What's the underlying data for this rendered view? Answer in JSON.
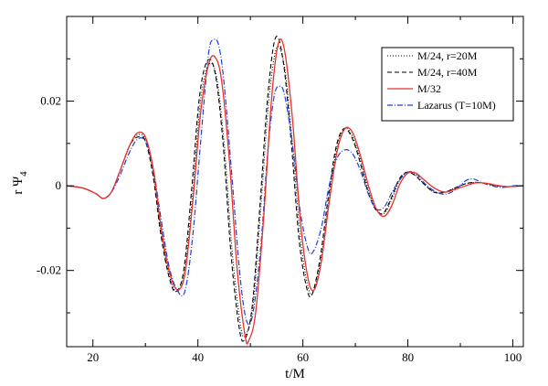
{
  "chart_data": {
    "type": "line",
    "title": "",
    "xlabel": "t/M",
    "ylabel_main": "r Ψ",
    "ylabel_sub": "4",
    "xlim": [
      15,
      102
    ],
    "ylim": [
      -0.038,
      0.04
    ],
    "x_ticks": [
      20,
      40,
      60,
      80,
      100
    ],
    "x_tick_labels": [
      "20",
      "40",
      "60",
      "80",
      "100"
    ],
    "y_ticks": [
      -0.02,
      0,
      0.02
    ],
    "y_tick_labels": [
      "-0.02",
      "0",
      "0.02"
    ],
    "grid": false,
    "legend_position": "top-right",
    "series": [
      {
        "name": "M/24, r=20M",
        "color": "#000000",
        "dash": "dotted",
        "points": [
          [
            15,
            0.0
          ],
          [
            18,
            -0.0005
          ],
          [
            20.5,
            -0.0018
          ],
          [
            22,
            -0.003
          ],
          [
            23.5,
            -0.0015
          ],
          [
            25,
            0.003
          ],
          [
            27,
            0.0095
          ],
          [
            28.5,
            0.012
          ],
          [
            30,
            0.011
          ],
          [
            31.5,
            0.003
          ],
          [
            33,
            -0.011
          ],
          [
            34.5,
            -0.021
          ],
          [
            36,
            -0.025
          ],
          [
            37.5,
            -0.02
          ],
          [
            39,
            -0.002
          ],
          [
            40.5,
            0.02
          ],
          [
            42,
            0.0285
          ],
          [
            43.5,
            0.026
          ],
          [
            45,
            0.01
          ],
          [
            46.5,
            -0.015
          ],
          [
            48,
            -0.032
          ],
          [
            49,
            -0.0355
          ],
          [
            50.5,
            -0.028
          ],
          [
            52,
            -0.005
          ],
          [
            53.5,
            0.02
          ],
          [
            55,
            0.0325
          ],
          [
            56.5,
            0.028
          ],
          [
            58,
            0.01
          ],
          [
            59.5,
            -0.012
          ],
          [
            61,
            -0.024
          ],
          [
            62,
            -0.025
          ],
          [
            63.5,
            -0.017
          ],
          [
            65,
            -0.003
          ],
          [
            66.5,
            0.009
          ],
          [
            68,
            0.0135
          ],
          [
            69.5,
            0.0115
          ],
          [
            71,
            0.006
          ],
          [
            72.5,
            -0.001
          ],
          [
            74,
            -0.0055
          ],
          [
            75.5,
            -0.0065
          ],
          [
            77,
            -0.003
          ],
          [
            78.5,
            0.0015
          ],
          [
            80,
            0.0032
          ],
          [
            81.5,
            0.0025
          ],
          [
            83,
            0.0005
          ],
          [
            85,
            -0.0015
          ],
          [
            87,
            -0.0015
          ],
          [
            89,
            -0.0005
          ],
          [
            91,
            0.0005
          ],
          [
            93,
            0.0008
          ],
          [
            95,
            0.0005
          ],
          [
            97,
            0.0
          ],
          [
            99,
            -0.0002
          ],
          [
            102,
            0.0
          ]
        ]
      },
      {
        "name": "M/24, r=40M",
        "color": "#000000",
        "dash": "dashed",
        "points": [
          [
            15,
            0.0
          ],
          [
            18,
            -0.0005
          ],
          [
            20.5,
            -0.0018
          ],
          [
            22,
            -0.003
          ],
          [
            23.5,
            -0.0015
          ],
          [
            25,
            0.003
          ],
          [
            27,
            0.0095
          ],
          [
            28.5,
            0.0115
          ],
          [
            30,
            0.0105
          ],
          [
            31.5,
            0.002
          ],
          [
            33,
            -0.012
          ],
          [
            34.5,
            -0.0215
          ],
          [
            35.8,
            -0.025
          ],
          [
            37.3,
            -0.02
          ],
          [
            38.8,
            -0.001
          ],
          [
            40.3,
            0.021
          ],
          [
            41.8,
            0.0295
          ],
          [
            43.3,
            0.0265
          ],
          [
            44.8,
            0.01
          ],
          [
            46.3,
            -0.016
          ],
          [
            47.8,
            -0.033
          ],
          [
            48.8,
            -0.0365
          ],
          [
            50.3,
            -0.029
          ],
          [
            51.8,
            -0.005
          ],
          [
            53.3,
            0.021
          ],
          [
            54.8,
            0.035
          ],
          [
            56.3,
            0.029
          ],
          [
            57.8,
            0.01
          ],
          [
            59.3,
            -0.013
          ],
          [
            60.8,
            -0.0245
          ],
          [
            61.8,
            -0.0255
          ],
          [
            63.3,
            -0.017
          ],
          [
            64.8,
            -0.003
          ],
          [
            66.3,
            0.009
          ],
          [
            67.8,
            0.0135
          ],
          [
            69.3,
            0.0115
          ],
          [
            70.8,
            0.006
          ],
          [
            72.3,
            -0.001
          ],
          [
            73.8,
            -0.0055
          ],
          [
            75.3,
            -0.0065
          ],
          [
            76.8,
            -0.003
          ],
          [
            78.3,
            0.0015
          ],
          [
            79.8,
            0.0032
          ],
          [
            81.3,
            0.0025
          ],
          [
            83,
            0.0005
          ],
          [
            85,
            -0.0015
          ],
          [
            87,
            -0.0015
          ],
          [
            89,
            -0.0005
          ],
          [
            91,
            0.0005
          ],
          [
            93,
            0.0008
          ],
          [
            95,
            0.0005
          ],
          [
            97,
            0.0
          ],
          [
            99,
            -0.0002
          ],
          [
            102,
            0.0
          ]
        ]
      },
      {
        "name": "M/32",
        "color": "#e8312a",
        "dash": "solid",
        "points": [
          [
            15,
            0.0
          ],
          [
            18,
            -0.0005
          ],
          [
            20.5,
            -0.0018
          ],
          [
            22,
            -0.003
          ],
          [
            23.5,
            -0.0015
          ],
          [
            25,
            0.003
          ],
          [
            27,
            0.0095
          ],
          [
            28.5,
            0.0125
          ],
          [
            30,
            0.0115
          ],
          [
            31.5,
            0.004
          ],
          [
            33,
            -0.01
          ],
          [
            34.5,
            -0.02
          ],
          [
            36,
            -0.0245
          ],
          [
            37.5,
            -0.021
          ],
          [
            39,
            -0.004
          ],
          [
            40.5,
            0.017
          ],
          [
            42,
            0.0285
          ],
          [
            43.2,
            0.0305
          ],
          [
            44.5,
            0.025
          ],
          [
            46,
            0.006
          ],
          [
            47.5,
            -0.02
          ],
          [
            49,
            -0.0355
          ],
          [
            49.7,
            -0.0365
          ],
          [
            51,
            -0.03
          ],
          [
            52.5,
            -0.008
          ],
          [
            54,
            0.02
          ],
          [
            55.3,
            0.0335
          ],
          [
            56.5,
            0.032
          ],
          [
            58,
            0.016
          ],
          [
            59.5,
            -0.008
          ],
          [
            61,
            -0.022
          ],
          [
            62.2,
            -0.0245
          ],
          [
            63.5,
            -0.018
          ],
          [
            65,
            -0.004
          ],
          [
            66.5,
            0.008
          ],
          [
            68,
            0.0135
          ],
          [
            69.5,
            0.0125
          ],
          [
            71,
            0.007
          ],
          [
            72.5,
            0.0
          ],
          [
            74,
            -0.0055
          ],
          [
            75.5,
            -0.0072
          ],
          [
            77,
            -0.0045
          ],
          [
            78.5,
            0.0005
          ],
          [
            80,
            0.003
          ],
          [
            81.5,
            0.003
          ],
          [
            83,
            0.0015
          ],
          [
            85,
            -0.0005
          ],
          [
            87,
            -0.0015
          ],
          [
            89,
            -0.0008
          ],
          [
            91,
            0.0
          ],
          [
            93,
            0.0007
          ],
          [
            95,
            0.0006
          ],
          [
            97,
            0.0001
          ],
          [
            99,
            -0.0002
          ],
          [
            102,
            0.0
          ]
        ]
      },
      {
        "name": "Lazarus (T=10M)",
        "color": "#1f3fd8",
        "dash": "dashdot",
        "points": [
          [
            15,
            0.0
          ],
          [
            18,
            -0.0005
          ],
          [
            20.5,
            -0.0018
          ],
          [
            22,
            -0.003
          ],
          [
            23.5,
            -0.0015
          ],
          [
            25,
            0.002
          ],
          [
            27,
            0.008
          ],
          [
            28.5,
            0.011
          ],
          [
            30,
            0.0105
          ],
          [
            31.5,
            0.004
          ],
          [
            33,
            -0.008
          ],
          [
            34.5,
            -0.019
          ],
          [
            36,
            -0.0245
          ],
          [
            37.5,
            -0.025
          ],
          [
            39,
            -0.012
          ],
          [
            40.5,
            0.01
          ],
          [
            42,
            0.031
          ],
          [
            43,
            0.0345
          ],
          [
            44,
            0.033
          ],
          [
            45,
            0.024
          ],
          [
            46.5,
            0.002
          ],
          [
            48,
            -0.021
          ],
          [
            49.3,
            -0.032
          ],
          [
            50.5,
            -0.03
          ],
          [
            52,
            -0.014
          ],
          [
            53.3,
            0.008
          ],
          [
            54.5,
            0.021
          ],
          [
            55.5,
            0.0235
          ],
          [
            56.5,
            0.0215
          ],
          [
            58,
            0.01
          ],
          [
            59.5,
            -0.006
          ],
          [
            61,
            -0.015
          ],
          [
            62,
            -0.0155
          ],
          [
            63.5,
            -0.01
          ],
          [
            65,
            0.0
          ],
          [
            66.5,
            0.0065
          ],
          [
            68,
            0.0085
          ],
          [
            69.5,
            0.0075
          ],
          [
            71,
            0.0035
          ],
          [
            72.5,
            -0.002
          ],
          [
            74,
            -0.0055
          ],
          [
            75.5,
            -0.005
          ],
          [
            77,
            -0.0015
          ],
          [
            78.5,
            0.0015
          ],
          [
            80,
            0.0032
          ],
          [
            81.5,
            0.003
          ],
          [
            83,
            0.0008
          ],
          [
            85,
            -0.0012
          ],
          [
            87,
            -0.002
          ],
          [
            89,
            -0.001
          ],
          [
            91,
            0.0012
          ],
          [
            92.5,
            0.0016
          ],
          [
            94,
            0.0008
          ],
          [
            96,
            0.0
          ],
          [
            98,
            -0.0004
          ],
          [
            100,
            0.0
          ],
          [
            102,
            0.0
          ]
        ]
      }
    ]
  }
}
